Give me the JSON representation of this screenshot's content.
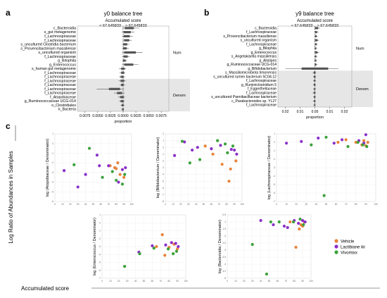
{
  "panel_letters": {
    "a": "a",
    "b": "b",
    "c": "c"
  },
  "colors": {
    "vehicle": "#e8833a",
    "lactiplane": "#8b2fc9",
    "vivomixx": "#3aa13a",
    "box": "#555555",
    "shade": "#e6e6e6",
    "axis": "#444444",
    "grid": "#ececec"
  },
  "global": {
    "ylabel": "Log Ratio of Abundances in Samples",
    "xlabel": "Accumulated score"
  },
  "legend": {
    "position": "right",
    "items": [
      {
        "label": "Vehicle",
        "color": "#e8833a"
      },
      {
        "label": "Lactibiane iki",
        "color": "#8b2fc9"
      },
      {
        "label": "Vivomixx",
        "color": "#3aa13a"
      }
    ]
  },
  "chart_data": [
    {
      "type": "boxplot-horizontal",
      "panel": "a",
      "title": "y0 balance tree",
      "subtitle": "Accumulated score",
      "left_label": "< 67.645833",
      "right_label": "> 67.645833",
      "xlabel": "proportion",
      "xlim": [
        -0.009,
        0.009
      ],
      "xticks": [
        "0.0075",
        "0.0050",
        "0.0025",
        "0.0000",
        "0.0025",
        "0.0050",
        "0.0075"
      ],
      "xtick_values": [
        -0.0075,
        -0.005,
        -0.0025,
        0.0,
        0.0025,
        0.005,
        0.0075
      ],
      "group_labels": [
        "Num",
        "Denom"
      ],
      "denom_start": 13,
      "rows": [
        {
          "label": "c_Bacteroidia",
          "q1": 0.0003,
          "q3": 0.0021,
          "lo": -0.0002,
          "hi": 0.0032
        },
        {
          "label": "s_gut metagenome",
          "q1": 0.0001,
          "q3": 0.0015,
          "lo": -0.0003,
          "hi": 0.0022
        },
        {
          "label": "f_Lachnospiraceae",
          "q1": 0.0001,
          "q3": 0.0013,
          "lo": -0.0002,
          "hi": 0.0019
        },
        {
          "label": "f_Lachnospiraceae",
          "q1": 0.0002,
          "q3": 0.0012,
          "lo": -0.0001,
          "hi": 0.0017
        },
        {
          "label": "s_uncultured Clostridia bacterium",
          "q1": 0.0,
          "q3": 0.0008,
          "lo": -0.0002,
          "hi": 0.0012
        },
        {
          "label": "s_Provencibacterium massiliense",
          "q1": 0.0,
          "q3": 0.0007,
          "lo": -0.0002,
          "hi": 0.0011
        },
        {
          "label": "s_uncultured organism",
          "q1": 0.0002,
          "q3": 0.0025,
          "lo": -0.0002,
          "hi": 0.0038
        },
        {
          "label": "f_Lachnospiraceae",
          "q1": 0.0001,
          "q3": 0.0009,
          "lo": -0.0002,
          "hi": 0.0013
        },
        {
          "label": "g_Bilophila",
          "q1": 0.0,
          "q3": 0.0005,
          "lo": -0.0002,
          "hi": 0.0008
        },
        {
          "label": "g_Enterococcus",
          "q1": 0.0002,
          "q3": 0.002,
          "lo": -0.0002,
          "hi": 0.003
        },
        {
          "label": "s_human gut metagenome",
          "q1": -0.0004,
          "q3": 0.0003,
          "lo": -0.0008,
          "hi": 0.0006
        },
        {
          "label": "f_Lachnospiraceae",
          "q1": -0.0004,
          "q3": 0.0002,
          "lo": -0.0007,
          "hi": 0.0004
        },
        {
          "label": "f_Lachnospiraceae",
          "q1": -0.0005,
          "q3": 0.0001,
          "lo": -0.0008,
          "hi": 0.0004
        },
        {
          "label": "f_Lachnospiraceae",
          "q1": -0.0005,
          "q3": 0.0002,
          "lo": -0.0009,
          "hi": 0.0005
        },
        {
          "label": "f_Lachnospiraceae",
          "q1": -0.0004,
          "q3": 0.0001,
          "lo": -0.0007,
          "hi": 0.0004
        },
        {
          "label": "f_Lachnospiraceae",
          "q1": -0.0028,
          "q3": -0.0006,
          "lo": -0.0052,
          "hi": 0.0002
        },
        {
          "label": "f_Lachnospiraceae",
          "q1": -0.0012,
          "q3": -0.0002,
          "lo": -0.0018,
          "hi": 0.0003
        },
        {
          "label": "f_Atopobiaceae",
          "q1": -0.0006,
          "q3": 0.0001,
          "lo": -0.001,
          "hi": 0.0004
        },
        {
          "label": "g_Ruminococcaceae UCG-014",
          "q1": -0.0005,
          "q3": 0.0001,
          "lo": -0.0008,
          "hi": 0.0003
        },
        {
          "label": "o_Clostridiales",
          "q1": -0.0003,
          "q3": 0.0001,
          "lo": -0.0005,
          "hi": 0.0003
        },
        {
          "label": "k_Bacteria",
          "q1": -0.0002,
          "q3": 0.0001,
          "lo": -0.0004,
          "hi": 0.0002
        }
      ]
    },
    {
      "type": "boxplot-horizontal",
      "panel": "b",
      "title": "y9 balance tree",
      "subtitle": "Accumulated score",
      "left_label": "< 67.645833",
      "right_label": "> 67.645833",
      "xlabel": "proportion",
      "xlim": [
        -0.025,
        0.025
      ],
      "xticks": [
        "0.02",
        "0.01",
        "0.00",
        "0.01",
        "0.02"
      ],
      "xtick_values": [
        -0.02,
        -0.01,
        0.0,
        0.01,
        0.02
      ],
      "group_labels": [
        "Num",
        "Denom"
      ],
      "denom_start": 11,
      "rows": [
        {
          "label": "c_Bacteroidia",
          "q1": 0.0002,
          "q3": 0.0022,
          "lo": -0.0005,
          "hi": 0.0035
        },
        {
          "label": "f_Lachnospiraceae",
          "q1": 0.0001,
          "q3": 0.0015,
          "lo": -0.0004,
          "hi": 0.0025
        },
        {
          "label": "s_Provencibacterium massiliense",
          "q1": 0.0001,
          "q3": 0.0012,
          "lo": -0.0004,
          "hi": 0.0018
        },
        {
          "label": "s_uncultured organism",
          "q1": 0.0001,
          "q3": 0.0018,
          "lo": -0.0004,
          "hi": 0.0028
        },
        {
          "label": "f_Lachnospiraceae",
          "q1": 0.0001,
          "q3": 0.0012,
          "lo": -0.0004,
          "hi": 0.002
        },
        {
          "label": "g_Bilophila",
          "q1": 0.0,
          "q3": 0.0009,
          "lo": -0.0004,
          "hi": 0.0015
        },
        {
          "label": "g_Enterococcus",
          "q1": 0.0001,
          "q3": 0.0018,
          "lo": -0.0004,
          "hi": 0.0028
        },
        {
          "label": "s_Angelakisella massiliensis",
          "q1": 0.0,
          "q3": 0.001,
          "lo": -0.0004,
          "hi": 0.0016
        },
        {
          "label": "g_Alistipes",
          "q1": 0.0,
          "q3": 0.0009,
          "lo": -0.0004,
          "hi": 0.0015
        },
        {
          "label": "g_Ruminococcaceae UCG-014",
          "q1": 0.0,
          "q3": 0.001,
          "lo": -0.0004,
          "hi": 0.0017
        },
        {
          "label": "g_Bifidobacterium",
          "q1": -0.009,
          "q3": 0.009,
          "lo": -0.02,
          "hi": 0.016
        },
        {
          "label": "s_Massiliomicrobiota timonensis",
          "q1": -0.0008,
          "q3": 0.0004,
          "lo": -0.0015,
          "hi": 0.0008
        },
        {
          "label": "s_uncultured rumen bacterium 5C0d-12",
          "q1": -0.0007,
          "q3": 0.0004,
          "lo": -0.0013,
          "hi": 0.0008
        },
        {
          "label": "f_Lachnospiraceae",
          "q1": -0.0006,
          "q3": 0.0003,
          "lo": -0.0012,
          "hi": 0.0007
        },
        {
          "label": "g_Ruminiclostridium 5",
          "q1": -0.0007,
          "q3": 0.0003,
          "lo": -0.0013,
          "hi": 0.0007
        },
        {
          "label": "f_Eggerthellaceae",
          "q1": -0.0006,
          "q3": 0.0003,
          "lo": -0.0012,
          "hi": 0.0007
        },
        {
          "label": "f_Lachnospiraceae",
          "q1": -0.0008,
          "q3": 0.0003,
          "lo": -0.0015,
          "hi": 0.0008
        },
        {
          "label": "s_uncultured Paenibacillaceae bacterium",
          "q1": -0.0006,
          "q3": 0.0003,
          "lo": -0.0012,
          "hi": 0.0007
        },
        {
          "label": "c_Parabacteroides sp. YL27",
          "q1": -0.0007,
          "q3": 0.0003,
          "lo": -0.0013,
          "hi": 0.0007
        },
        {
          "label": "f_Lachnospiraceae",
          "q1": -0.0005,
          "q3": 0.0002,
          "lo": -0.001,
          "hi": 0.0006
        }
      ]
    },
    {
      "type": "scatter",
      "panel": "c1",
      "ylabel": "log (Atopobiaceae / Denominator)",
      "xlabel": "",
      "xlim": [
        0,
        100
      ],
      "xticks": [
        0,
        10,
        20,
        30,
        40,
        50,
        60,
        70,
        80,
        90,
        100
      ],
      "ylim": [
        -6,
        1
      ],
      "yticks": [
        -6,
        -5,
        -4,
        -3,
        -2,
        -1,
        0,
        1
      ],
      "series": [
        {
          "name": "Vehicle",
          "color": "#e8833a",
          "points": [
            [
              72,
              -2.3
            ],
            [
              78,
              -2.5
            ],
            [
              85,
              -3.2
            ],
            [
              82,
              -2.0
            ],
            [
              90,
              -3.5
            ],
            [
              80,
              -2.6
            ]
          ]
        },
        {
          "name": "Lactibiane iki",
          "color": "#8b2fc9",
          "points": [
            [
              12,
              -2.8
            ],
            [
              30,
              -4.5
            ],
            [
              40,
              -3.2
            ],
            [
              55,
              -1.2
            ],
            [
              58,
              -2.3
            ],
            [
              70,
              -2.3
            ],
            [
              88,
              -2.7
            ],
            [
              83,
              -4.0
            ],
            [
              92,
              -2.5
            ]
          ]
        },
        {
          "name": "Vivomixx",
          "color": "#3aa13a",
          "points": [
            [
              25,
              -2.2
            ],
            [
              45,
              -0.5
            ],
            [
              62,
              -3.5
            ],
            [
              75,
              -2.9
            ],
            [
              80,
              -3.8
            ],
            [
              88,
              -4.2
            ],
            [
              91,
              -3.2
            ]
          ]
        }
      ]
    },
    {
      "type": "scatter",
      "panel": "c2",
      "ylabel": "log (Bifidobacterium / Denominator)",
      "xlabel": "",
      "xlim": [
        0,
        100
      ],
      "xticks": [
        0,
        10,
        20,
        30,
        40,
        50,
        60,
        70,
        80,
        90,
        100
      ],
      "ylim": [
        -8,
        2
      ],
      "yticks": [
        -8,
        -7,
        -6,
        -5,
        -4,
        -3,
        -2,
        -1,
        0,
        1,
        2
      ],
      "series": [
        {
          "name": "Vehicle",
          "color": "#e8833a",
          "points": [
            [
              52,
              0.2
            ],
            [
              62,
              -1.0
            ],
            [
              74,
              -2.5
            ],
            [
              85,
              -3.2
            ],
            [
              83,
              -5.0
            ],
            [
              92,
              -2.0
            ]
          ]
        },
        {
          "name": "Lactibiane iki",
          "color": "#8b2fc9",
          "points": [
            [
              12,
              -1.2
            ],
            [
              25,
              0.8
            ],
            [
              35,
              -0.4
            ],
            [
              42,
              0.0
            ],
            [
              60,
              -0.2
            ],
            [
              72,
              0.3
            ],
            [
              86,
              -0.3
            ],
            [
              90,
              -0.4
            ],
            [
              93,
              -1.0
            ]
          ]
        },
        {
          "name": "Vivomixx",
          "color": "#3aa13a",
          "points": [
            [
              22,
              0.9
            ],
            [
              32,
              -2.3
            ],
            [
              45,
              -1.8
            ],
            [
              68,
              1.0
            ],
            [
              78,
              0.5
            ],
            [
              81,
              -0.8
            ],
            [
              88,
              0.2
            ]
          ]
        }
      ]
    },
    {
      "type": "scatter",
      "panel": "c3",
      "ylabel": "log (Lachnospiraceae / Denominator)",
      "xlabel": "",
      "xlim": [
        0,
        100
      ],
      "xticks": [
        0,
        10,
        20,
        30,
        40,
        50,
        60,
        70,
        80,
        90,
        100
      ],
      "ylim": [
        -7,
        1
      ],
      "yticks": [
        -7,
        -6,
        -5,
        -4,
        -3,
        -2,
        -1,
        0,
        1
      ],
      "series": [
        {
          "name": "Vehicle",
          "color": "#e8833a",
          "points": [
            [
              62,
              0.0
            ],
            [
              70,
              0.3
            ],
            [
              80,
              0.0
            ],
            [
              86,
              -0.3
            ],
            [
              88,
              0.2
            ],
            [
              90,
              -0.4
            ],
            [
              92,
              0.0
            ]
          ]
        },
        {
          "name": "Lactibiane iki",
          "color": "#8b2fc9",
          "points": [
            [
              10,
              -0.1
            ],
            [
              25,
              0.1
            ],
            [
              42,
              0.5
            ],
            [
              58,
              -0.1
            ],
            [
              66,
              0.3
            ],
            [
              83,
              0.2
            ],
            [
              88,
              -0.1
            ],
            [
              90,
              0.9
            ]
          ]
        },
        {
          "name": "Vivomixx",
          "color": "#3aa13a",
          "points": [
            [
              35,
              -0.3
            ],
            [
              50,
              0.6
            ],
            [
              72,
              -0.5
            ],
            [
              82,
              0.0
            ],
            [
              87,
              -0.3
            ],
            [
              91,
              -0.5
            ],
            [
              48,
              -6.3
            ]
          ]
        }
      ]
    },
    {
      "type": "scatter",
      "panel": "c4",
      "ylabel": "log (Enterococcus / Denominator)",
      "xlabel": "",
      "xlim": [
        0,
        100
      ],
      "xticks": [
        0,
        10,
        20,
        30,
        40,
        50,
        60,
        70,
        80,
        90,
        100
      ],
      "ylim": [
        -7,
        1
      ],
      "yticks": [
        -7,
        -6,
        -5,
        -4,
        -3,
        -2,
        -1,
        0,
        1
      ],
      "series": [
        {
          "name": "Vehicle",
          "color": "#e8833a",
          "points": [
            [
              65,
              -3.0
            ],
            [
              72,
              -1.5
            ],
            [
              80,
              -3.1
            ],
            [
              86,
              -2.7
            ],
            [
              90,
              -3.3
            ],
            [
              75,
              -4.1
            ]
          ]
        },
        {
          "name": "Lactibiane iki",
          "color": "#8b2fc9",
          "points": [
            [
              44,
              -3.7
            ],
            [
              60,
              -2.9
            ],
            [
              76,
              -2.8
            ],
            [
              83,
              -2.5
            ],
            [
              88,
              -2.6
            ],
            [
              91,
              -3.0
            ]
          ]
        },
        {
          "name": "Vivomixx",
          "color": "#3aa13a",
          "points": [
            [
              27,
              -5.5
            ],
            [
              45,
              -3.9
            ],
            [
              62,
              -3.2
            ],
            [
              79,
              -3.3
            ],
            [
              85,
              -3.9
            ],
            [
              89,
              -3.6
            ]
          ]
        }
      ]
    },
    {
      "type": "scatter",
      "panel": "c5",
      "ylabel": "log (Bacteroidia / Denominator)",
      "xlabel": "",
      "xlim": [
        0,
        100
      ],
      "xticks": [
        0,
        10,
        20,
        30,
        40,
        50,
        60,
        70,
        80,
        90,
        100
      ],
      "ylim": [
        -5,
        -0.5
      ],
      "yticks": [
        -5,
        -4.5,
        -4,
        -3.5,
        -3,
        -2.5,
        -2,
        -1.5,
        -1,
        -0.5
      ],
      "series": [
        {
          "name": "Vehicle",
          "color": "#e8833a",
          "points": [
            [
              75,
              -1.0
            ],
            [
              82,
              -2.8
            ],
            [
              88,
              -1.2
            ],
            [
              90,
              -1.3
            ],
            [
              86,
              -1.5
            ],
            [
              92,
              -1.0
            ]
          ]
        },
        {
          "name": "Lactibiane iki",
          "color": "#8b2fc9",
          "points": [
            [
              40,
              -0.9
            ],
            [
              55,
              -1.2
            ],
            [
              68,
              -1.3
            ],
            [
              80,
              -0.9
            ],
            [
              85,
              -1.1
            ],
            [
              90,
              -0.9
            ],
            [
              93,
              -1.0
            ],
            [
              72,
              -1.4
            ]
          ]
        },
        {
          "name": "Vivomixx",
          "color": "#3aa13a",
          "points": [
            [
              30,
              -2.6
            ],
            [
              52,
              -1.0
            ],
            [
              62,
              -1.0
            ],
            [
              79,
              -1.0
            ],
            [
              87,
              -0.8
            ],
            [
              91,
              -1.2
            ],
            [
              47,
              -4.7
            ]
          ]
        }
      ]
    }
  ]
}
